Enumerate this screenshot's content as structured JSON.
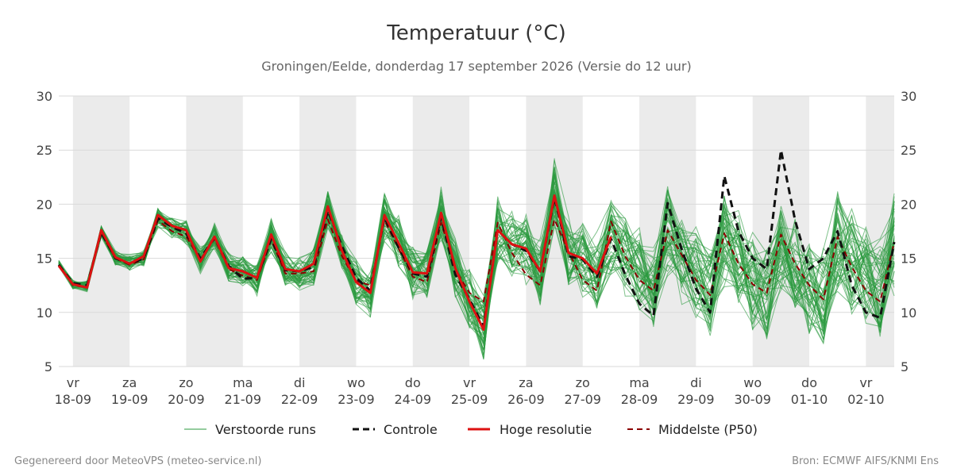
{
  "page": {
    "footer_left": "Gegenereerd door MeteoVPS (meteo-service.nl)",
    "footer_right": "Bron: ECMWF AIFS/KNMI Ens"
  },
  "colors": {
    "ensemble": "#2a9a3e",
    "control": "#111111",
    "hires": "#dd1111",
    "median": "#8b0000",
    "weekend_band": "#ebebeb",
    "grid": "#d9d9d9"
  },
  "chart_data": {
    "type": "line",
    "title": "Temperatuur (°C)",
    "subtitle": "Groningen/Eelde, donderdag 17 september 2026 (Versie do 12 uur)",
    "ylabel": "",
    "ylim": [
      5,
      30
    ],
    "yticks": [
      5,
      10,
      15,
      20,
      25,
      30
    ],
    "grid": true,
    "legend_position": "bottom",
    "x_range_days": [
      -0.25,
      14.5
    ],
    "x_day_ticks": [
      {
        "day": "vr",
        "date": "18-09"
      },
      {
        "day": "za",
        "date": "19-09"
      },
      {
        "day": "zo",
        "date": "20-09"
      },
      {
        "day": "ma",
        "date": "21-09"
      },
      {
        "day": "di",
        "date": "22-09"
      },
      {
        "day": "wo",
        "date": "23-09"
      },
      {
        "day": "do",
        "date": "24-09"
      },
      {
        "day": "vr",
        "date": "25-09"
      },
      {
        "day": "za",
        "date": "26-09"
      },
      {
        "day": "zo",
        "date": "27-09"
      },
      {
        "day": "ma",
        "date": "28-09"
      },
      {
        "day": "di",
        "date": "29-09"
      },
      {
        "day": "wo",
        "date": "30-09"
      },
      {
        "day": "do",
        "date": "01-10"
      },
      {
        "day": "vr",
        "date": "02-10"
      }
    ],
    "shaded_day_indices": [
      0,
      2,
      4,
      6,
      8,
      10,
      12,
      14
    ],
    "x_days": [
      -0.25,
      0.0,
      0.25,
      0.5,
      0.75,
      1.0,
      1.25,
      1.5,
      1.75,
      2.0,
      2.25,
      2.5,
      2.75,
      3.0,
      3.25,
      3.5,
      3.75,
      4.0,
      4.25,
      4.5,
      4.75,
      5.0,
      5.25,
      5.5,
      5.75,
      6.0,
      6.25,
      6.5,
      6.75,
      7.0,
      7.25,
      7.5,
      7.75,
      8.0,
      8.25,
      8.5,
      8.75,
      9.0,
      9.25,
      9.5,
      9.75,
      10.0,
      10.25,
      10.5,
      10.75,
      11.0,
      11.25,
      11.5,
      11.75,
      12.0,
      12.25,
      12.5,
      12.75,
      13.0,
      13.25,
      13.5,
      13.75,
      14.0,
      14.25,
      14.5
    ],
    "series": [
      {
        "name": "Verstoorde runs",
        "style": "thin-solid",
        "values": [
          14.5,
          12.6,
          12.4,
          17.5,
          15.0,
          14.6,
          15.0,
          18.8,
          17.8,
          17.5,
          14.8,
          17.0,
          14.2,
          13.8,
          13.1,
          17.1,
          14.0,
          13.8,
          14.3,
          19.6,
          15.6,
          12.8,
          11.8,
          19.0,
          16.5,
          13.8,
          13.6,
          19.1,
          14.2,
          11.0,
          8.5,
          17.6,
          16.4,
          15.8,
          13.7,
          20.9,
          15.6,
          15.0,
          13.6,
          16.9,
          15.0,
          14.0,
          12.0,
          17.5,
          15.0,
          13.5,
          11.8,
          17.0,
          14.5,
          13.0,
          11.5,
          16.5,
          14.0,
          12.5,
          11.5,
          16.5,
          14.5,
          13.0,
          12.0,
          16.5
        ],
        "ensemble_extra_members": 50
      },
      {
        "name": "Controle",
        "style": "dashed",
        "values": [
          14.4,
          12.7,
          12.5,
          17.4,
          15.0,
          14.5,
          15.0,
          18.7,
          17.9,
          17.3,
          15.0,
          16.9,
          14.3,
          13.1,
          13.2,
          16.8,
          13.9,
          13.8,
          14.2,
          19.4,
          16.1,
          13.2,
          12.0,
          18.8,
          16.0,
          13.6,
          13.3,
          18.8,
          13.5,
          11.2,
          8.7,
          17.6,
          16.3,
          15.7,
          13.8,
          20.6,
          15.2,
          14.9,
          13.3,
          16.8,
          13.5,
          10.8,
          9.7,
          20.1,
          15.8,
          12.2,
          10.0,
          22.6,
          17.5,
          15.0,
          14.0,
          25.0,
          18.5,
          14.0,
          15.0,
          17.5,
          12.5,
          10.0,
          9.5,
          16.5
        ]
      },
      {
        "name": "Hoge resolutie",
        "style": "thick-solid",
        "values": [
          14.3,
          12.6,
          12.3,
          17.6,
          15.1,
          14.5,
          15.2,
          19.0,
          18.0,
          17.6,
          14.7,
          17.0,
          14.1,
          13.8,
          13.2,
          17.2,
          14.0,
          13.8,
          14.5,
          19.8,
          15.7,
          12.8,
          11.8,
          19.0,
          16.4,
          13.7,
          13.6,
          19.2,
          14.1,
          11.0,
          8.4,
          17.6,
          16.3,
          15.9,
          13.8,
          20.8,
          15.5,
          15.0,
          13.6,
          17.0
        ]
      },
      {
        "name": "Middelste (P50)",
        "style": "dashed",
        "values": [
          14.3,
          12.5,
          12.3,
          17.3,
          15.0,
          14.4,
          14.9,
          18.5,
          17.5,
          17.0,
          14.9,
          16.8,
          14.0,
          13.4,
          13.0,
          16.7,
          13.6,
          13.6,
          13.8,
          18.6,
          15.2,
          12.9,
          12.5,
          18.5,
          15.9,
          13.3,
          12.8,
          18.3,
          14.0,
          11.8,
          11.0,
          18.3,
          15.5,
          13.5,
          12.5,
          18.6,
          15.6,
          13.0,
          12.0,
          18.4,
          15.2,
          13.0,
          12.0,
          17.6,
          15.3,
          13.0,
          11.6,
          17.3,
          14.5,
          12.6,
          11.8,
          17.2,
          14.5,
          12.5,
          11.2,
          17.0,
          14.2,
          12.0,
          11.0,
          16.5
        ]
      }
    ]
  }
}
